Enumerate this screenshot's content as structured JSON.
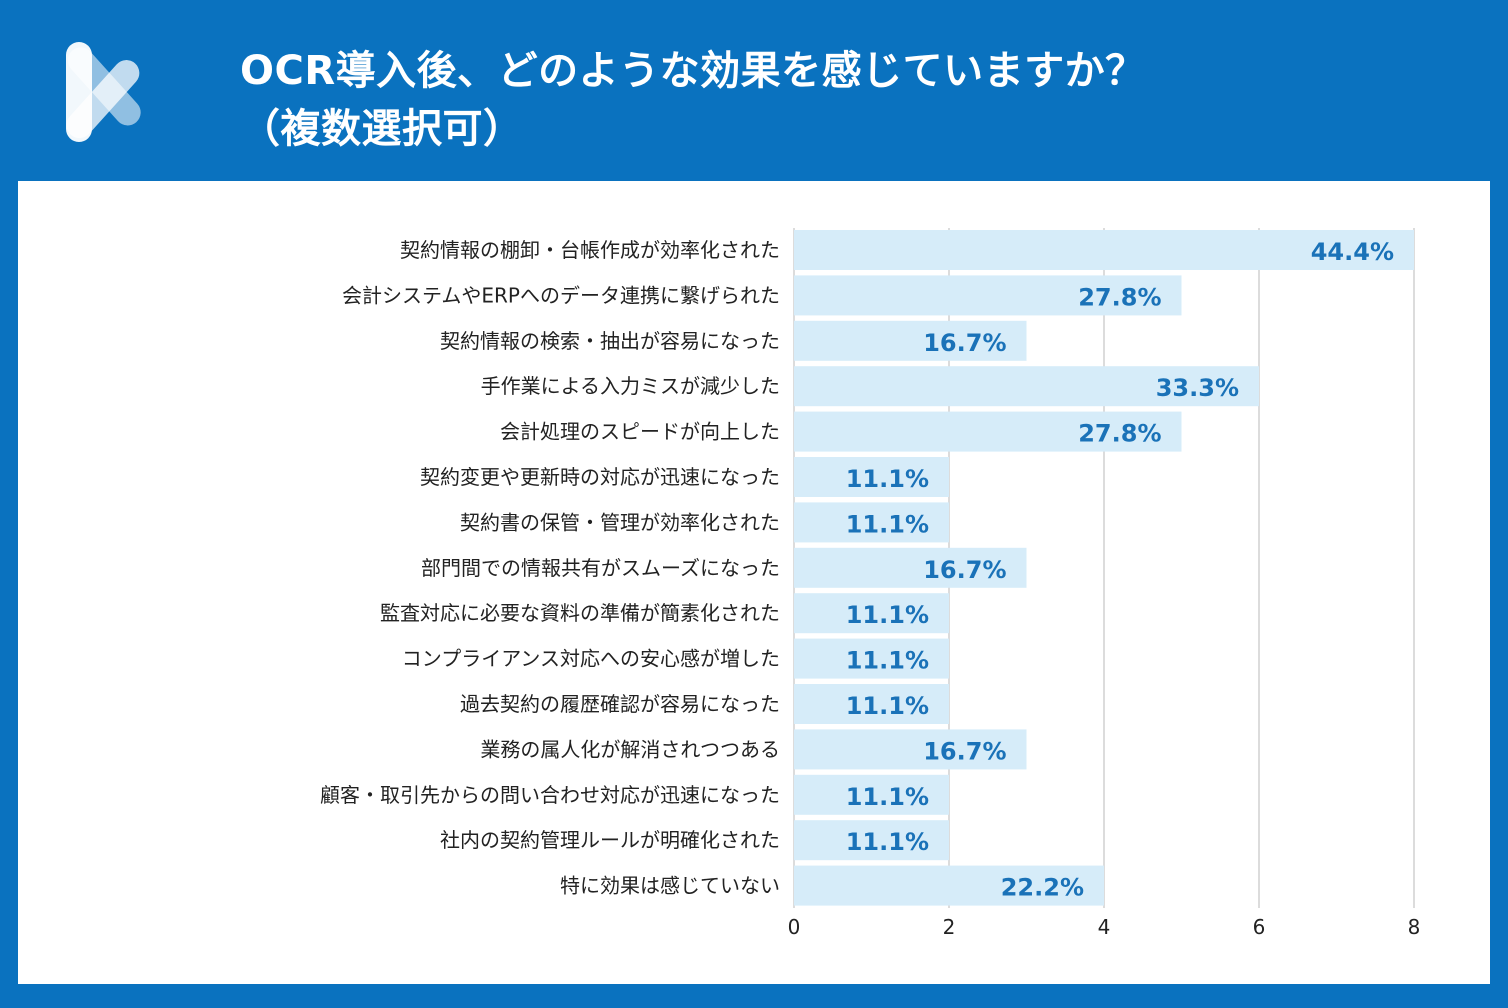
{
  "header": {
    "title_line1": "OCR導入後、どのような効果を感じていますか？",
    "title_line2": "（複数選択可）"
  },
  "colors": {
    "frame": "#0a72bf",
    "bar": "#d6ecf9",
    "value_text": "#1a72b8",
    "grid": "#d0d0d0"
  },
  "chart_data": {
    "type": "bar",
    "orientation": "horizontal",
    "categories": [
      "契約情報の棚卸・台帳作成が効率化された",
      "会計システムやERPへのデータ連携に繋げられた",
      "契約情報の検索・抽出が容易になった",
      "手作業による入力ミスが減少した",
      "会計処理のスピードが向上した",
      "契約変更や更新時の対応が迅速になった",
      "契約書の保管・管理が効率化された",
      "部門間での情報共有がスムーズになった",
      "監査対応に必要な資料の準備が簡素化された",
      "コンプライアンス対応への安心感が増した",
      "過去契約の履歴確認が容易になった",
      "業務の属人化が解消されつつある",
      "顧客・取引先からの問い合わせ対応が迅速になった",
      "社内の契約管理ルールが明確化された",
      "特に効果は感じていない"
    ],
    "values": [
      8,
      5,
      3,
      6,
      5,
      2,
      2,
      3,
      2,
      2,
      2,
      3,
      2,
      2,
      4
    ],
    "data_labels": [
      "44.4%",
      "27.8%",
      "16.7%",
      "33.3%",
      "27.8%",
      "11.1%",
      "11.1%",
      "16.7%",
      "11.1%",
      "11.1%",
      "11.1%",
      "16.7%",
      "11.1%",
      "11.1%",
      "22.2%"
    ],
    "xlim": [
      0,
      8
    ],
    "xticks": [
      "0",
      "2",
      "4",
      "6",
      "8"
    ],
    "grid": true
  }
}
